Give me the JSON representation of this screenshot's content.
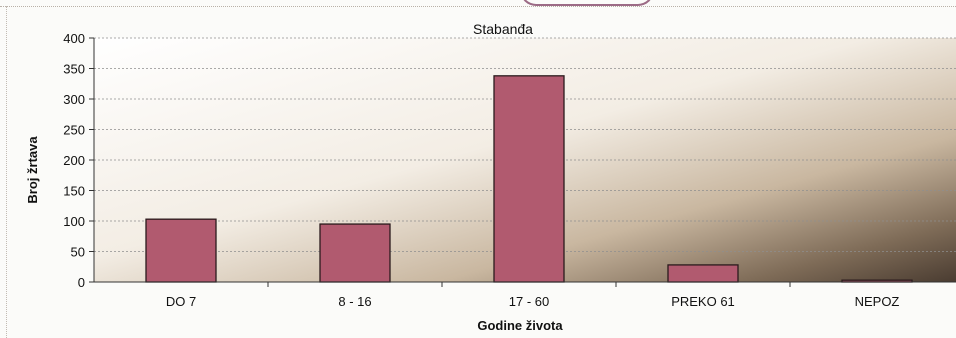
{
  "chart_data": {
    "type": "bar",
    "title": "Stabanđa",
    "xlabel": "Godine života",
    "ylabel": "Broj žrtava",
    "categories": [
      "DO  7",
      "8 - 16",
      "17 - 60",
      "PREKO 61",
      "NEPOZ"
    ],
    "values": [
      103,
      95,
      338,
      28,
      3
    ],
    "ylim": [
      0,
      400
    ],
    "yticks": [
      0,
      50,
      100,
      150,
      200,
      250,
      300,
      350,
      400
    ],
    "grid": true,
    "legend": "none",
    "colors": {
      "bar": "#b15a6f",
      "bar_edge": "#2a1a1c",
      "grid": "#8f8f8f"
    }
  }
}
